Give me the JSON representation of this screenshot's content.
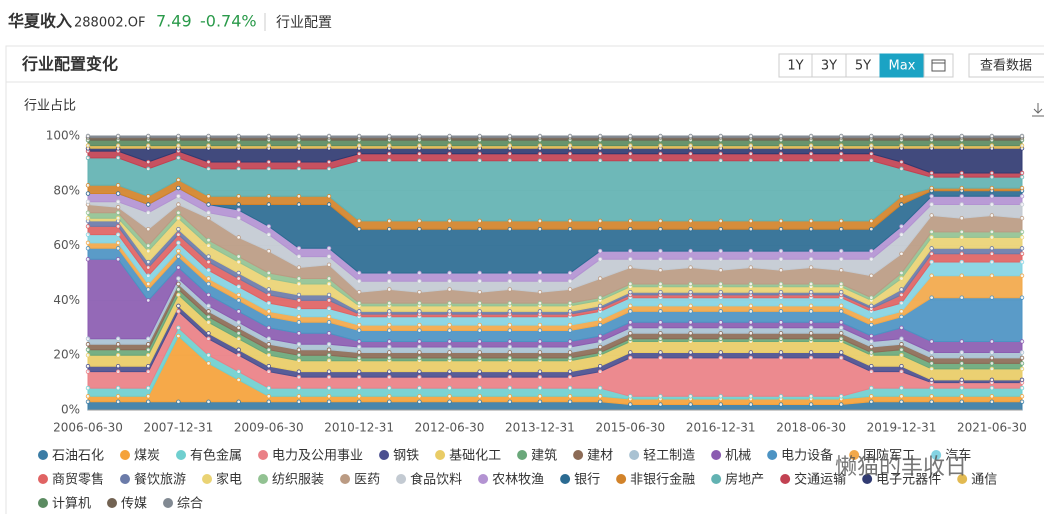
{
  "header": {
    "fund_name": "华夏收入",
    "code": "288002.OF",
    "nav": "7.49",
    "change": "-0.74%",
    "tab": "行业配置"
  },
  "card": {
    "title": "行业配置变化",
    "buttons": [
      "1Y",
      "3Y",
      "5Y",
      "Max"
    ],
    "active_button": 3,
    "view_data": "查看数据"
  },
  "watermark": "懒猫的丰收日",
  "chart_data": {
    "type": "area",
    "stacked": true,
    "ylabel": "行业占比",
    "legend": "bottom",
    "grid": true,
    "categories": [
      "2006-06-30",
      null,
      null,
      "2007-12-31",
      null,
      null,
      "2009-06-30",
      null,
      null,
      "2010-12-31",
      null,
      null,
      "2012-06-30",
      null,
      null,
      "2013-12-31",
      null,
      null,
      "2015-06-30",
      null,
      null,
      "2016-12-31",
      null,
      null,
      "2018-06-30",
      null,
      null,
      "2019-12-31",
      null,
      null,
      "2021-06-30",
      null
    ],
    "ylim": [
      0,
      100
    ],
    "yticks": [
      {
        "value": 0,
        "label": "0%"
      },
      {
        "value": 20,
        "label": "20%"
      },
      {
        "value": 40,
        "label": "40%"
      },
      {
        "value": 60,
        "label": "60%"
      },
      {
        "value": 80,
        "label": "80%"
      },
      {
        "value": 100,
        "label": "100%"
      }
    ],
    "series": [
      {
        "name": "石油石化",
        "color": "#3a7ca5",
        "values": [
          3,
          3,
          3,
          3,
          3,
          3,
          3,
          3,
          3,
          3,
          3,
          3,
          3,
          3,
          3,
          3,
          3,
          3,
          2,
          2,
          2,
          2,
          2,
          2,
          2,
          2,
          3,
          3,
          3,
          3,
          3,
          3
        ]
      },
      {
        "name": "煤炭",
        "color": "#f5a23a",
        "values": [
          2,
          2,
          2,
          24,
          14,
          8,
          2,
          2,
          2,
          2,
          2,
          2,
          2,
          2,
          2,
          2,
          2,
          2,
          2,
          2,
          2,
          2,
          2,
          2,
          2,
          2,
          2,
          2,
          2,
          2,
          2,
          2
        ]
      },
      {
        "name": "有色金属",
        "color": "#6fcfcf",
        "values": [
          3,
          3,
          3,
          3,
          3,
          3,
          3,
          3,
          3,
          3,
          3,
          3,
          3,
          3,
          3,
          3,
          3,
          3,
          1,
          1,
          1,
          1,
          1,
          1,
          1,
          1,
          3,
          3,
          3,
          3,
          3,
          3
        ]
      },
      {
        "name": "电力及公用事业",
        "color": "#ea8086",
        "values": [
          6,
          6,
          6,
          6,
          6,
          6,
          6,
          4,
          4,
          4,
          4,
          4,
          4,
          4,
          4,
          4,
          4,
          6,
          14,
          14,
          14,
          14,
          14,
          14,
          14,
          14,
          6,
          6,
          2,
          2,
          2,
          2
        ]
      },
      {
        "name": "钢铁",
        "color": "#4b4f8f",
        "values": [
          2,
          2,
          2,
          2,
          2,
          2,
          2,
          2,
          2,
          2,
          2,
          2,
          2,
          2,
          2,
          2,
          2,
          2,
          2,
          2,
          2,
          2,
          2,
          2,
          2,
          2,
          2,
          2,
          1,
          1,
          1,
          1
        ]
      },
      {
        "name": "基础化工",
        "color": "#e9cc66",
        "values": [
          4,
          4,
          4,
          4,
          4,
          4,
          4,
          4,
          4,
          4,
          4,
          4,
          4,
          4,
          4,
          4,
          4,
          4,
          4,
          4,
          4,
          4,
          4,
          4,
          4,
          4,
          4,
          4,
          4,
          4,
          4,
          4
        ]
      },
      {
        "name": "建筑",
        "color": "#6aa87a",
        "values": [
          2,
          2,
          2,
          2,
          2,
          2,
          2,
          2,
          2,
          1,
          1,
          1,
          1,
          1,
          1,
          1,
          1,
          1,
          1,
          1,
          1,
          1,
          1,
          1,
          1,
          1,
          1,
          2,
          2,
          2,
          2,
          2
        ]
      },
      {
        "name": "建材",
        "color": "#8c6b56",
        "values": [
          2,
          2,
          2,
          2,
          2,
          2,
          2,
          2,
          2,
          2,
          2,
          2,
          2,
          2,
          2,
          2,
          2,
          2,
          2,
          2,
          2,
          2,
          2,
          2,
          2,
          2,
          2,
          2,
          2,
          2,
          2,
          2
        ]
      },
      {
        "name": "轻工制造",
        "color": "#a9c2d2",
        "values": [
          2,
          2,
          2,
          2,
          2,
          2,
          2,
          2,
          2,
          2,
          2,
          2,
          2,
          2,
          2,
          2,
          2,
          2,
          2,
          2,
          2,
          2,
          2,
          2,
          2,
          2,
          2,
          2,
          2,
          2,
          2,
          2
        ]
      },
      {
        "name": "机械",
        "color": "#8b5cb1",
        "values": [
          29,
          29,
          14,
          4,
          4,
          4,
          4,
          4,
          4,
          2,
          2,
          2,
          2,
          2,
          2,
          2,
          2,
          2,
          2,
          2,
          2,
          2,
          2,
          2,
          2,
          2,
          2,
          4,
          4,
          4,
          4,
          4
        ]
      },
      {
        "name": "电力设备",
        "color": "#4c93c3",
        "values": [
          4,
          4,
          4,
          4,
          4,
          4,
          4,
          4,
          4,
          4,
          4,
          4,
          4,
          4,
          4,
          4,
          4,
          4,
          4,
          4,
          4,
          4,
          4,
          4,
          4,
          4,
          4,
          4,
          16,
          16,
          16,
          16
        ]
      },
      {
        "name": "国防军工",
        "color": "#f2a84a",
        "values": [
          2,
          2,
          2,
          2,
          2,
          2,
          2,
          2,
          2,
          2,
          2,
          2,
          2,
          2,
          2,
          2,
          2,
          2,
          2,
          2,
          2,
          2,
          2,
          2,
          2,
          2,
          2,
          2,
          8,
          8,
          8,
          8
        ]
      },
      {
        "name": "汽车",
        "color": "#84d3e2",
        "values": [
          3,
          3,
          3,
          3,
          3,
          3,
          3,
          3,
          3,
          3,
          3,
          3,
          3,
          3,
          3,
          3,
          3,
          3,
          3,
          3,
          3,
          3,
          3,
          3,
          3,
          3,
          3,
          3,
          5,
          5,
          5,
          5
        ]
      },
      {
        "name": "商贸零售",
        "color": "#e06363",
        "values": [
          3,
          3,
          3,
          3,
          3,
          3,
          3,
          3,
          3,
          1,
          1,
          1,
          1,
          1,
          1,
          1,
          1,
          1,
          1,
          1,
          1,
          1,
          1,
          1,
          1,
          1,
          1,
          3,
          3,
          3,
          3,
          3
        ]
      },
      {
        "name": "餐饮旅游",
        "color": "#6b7ba9",
        "values": [
          2,
          2,
          2,
          2,
          2,
          2,
          2,
          2,
          2,
          1,
          1,
          1,
          1,
          1,
          1,
          1,
          1,
          1,
          1,
          1,
          1,
          1,
          1,
          1,
          1,
          1,
          1,
          2,
          2,
          2,
          2,
          2
        ]
      },
      {
        "name": "家电",
        "color": "#ead374",
        "values": [
          1,
          1,
          4,
          4,
          4,
          4,
          4,
          4,
          4,
          2,
          2,
          2,
          2,
          2,
          2,
          2,
          2,
          2,
          2,
          2,
          2,
          2,
          2,
          2,
          2,
          2,
          2,
          4,
          4,
          4,
          4,
          4
        ]
      },
      {
        "name": "纺织服装",
        "color": "#92c292",
        "values": [
          2,
          2,
          2,
          2,
          2,
          2,
          2,
          2,
          2,
          1,
          1,
          1,
          1,
          1,
          1,
          1,
          1,
          1,
          1,
          1,
          1,
          1,
          1,
          1,
          1,
          1,
          1,
          2,
          2,
          2,
          2,
          2
        ]
      },
      {
        "name": "医药",
        "color": "#bb9b83",
        "values": [
          3,
          2,
          6,
          3,
          8,
          7,
          8,
          4,
          5,
          4,
          5,
          4,
          5,
          4,
          5,
          4,
          5,
          7,
          6,
          5,
          6,
          5,
          6,
          5,
          6,
          5,
          8,
          7,
          6,
          5,
          6,
          5
        ]
      },
      {
        "name": "食品饮料",
        "color": "#c3cad2",
        "values": [
          1,
          2,
          6,
          3,
          2,
          7,
          6,
          4,
          3,
          4,
          3,
          4,
          3,
          4,
          3,
          4,
          3,
          7,
          3,
          4,
          3,
          4,
          3,
          4,
          3,
          4,
          6,
          7,
          4,
          5,
          4,
          5
        ]
      },
      {
        "name": "农林牧渔",
        "color": "#b393d2",
        "values": [
          3,
          3,
          3,
          3,
          3,
          3,
          3,
          3,
          3,
          3,
          3,
          3,
          3,
          3,
          3,
          3,
          3,
          3,
          3,
          3,
          3,
          3,
          3,
          3,
          3,
          3,
          3,
          3,
          3,
          3,
          3,
          3
        ]
      },
      {
        "name": "银行",
        "color": "#2b6b92",
        "values": [
          0,
          0,
          0,
          0,
          0,
          2,
          8,
          16,
          16,
          16,
          16,
          16,
          16,
          16,
          16,
          16,
          16,
          8,
          8,
          8,
          8,
          8,
          8,
          8,
          8,
          8,
          8,
          8,
          2,
          2,
          2,
          2
        ]
      },
      {
        "name": "非银行金融",
        "color": "#d2832a",
        "values": [
          3,
          3,
          3,
          3,
          3,
          3,
          3,
          3,
          3,
          3,
          3,
          3,
          3,
          3,
          3,
          3,
          3,
          3,
          3,
          3,
          3,
          3,
          3,
          3,
          3,
          3,
          3,
          3,
          1,
          1,
          1,
          1
        ]
      },
      {
        "name": "房地产",
        "color": "#62b2b2",
        "values": [
          10,
          10,
          10,
          8,
          10,
          10,
          10,
          10,
          10,
          22,
          22,
          22,
          22,
          22,
          22,
          22,
          22,
          22,
          22,
          22,
          22,
          22,
          22,
          22,
          22,
          22,
          22,
          10,
          4,
          4,
          4,
          4
        ]
      },
      {
        "name": "交通运输",
        "color": "#c24252",
        "values": [
          2.5,
          2.5,
          2.5,
          2.5,
          2.5,
          2.5,
          2.5,
          2.5,
          2.5,
          2.5,
          2.5,
          2.5,
          2.5,
          2.5,
          2.5,
          2.5,
          2.5,
          2.5,
          2.5,
          2.5,
          2.5,
          2.5,
          2.5,
          2.5,
          2.5,
          2.5,
          2.5,
          2.5,
          1.5,
          1.5,
          1.5,
          1.5
        ]
      },
      {
        "name": "电子元器件",
        "color": "#313b72",
        "values": [
          1,
          1,
          5,
          1,
          5,
          5,
          5,
          5,
          5,
          2,
          2,
          2,
          2,
          2,
          2,
          2,
          2,
          2,
          2,
          2,
          2,
          2,
          2,
          2,
          2,
          2,
          2,
          5,
          9,
          9,
          9,
          9
        ]
      },
      {
        "name": "通信",
        "color": "#e2ba52",
        "values": [
          1,
          1,
          1,
          1,
          1,
          1,
          1,
          1,
          1,
          1,
          1,
          1,
          1,
          1,
          1,
          1,
          1,
          1,
          1,
          1,
          1,
          1,
          1,
          1,
          1,
          1,
          1,
          1,
          1,
          1,
          1,
          1
        ]
      },
      {
        "name": "计算机",
        "color": "#5b8b61",
        "values": [
          2,
          2,
          2,
          2,
          2,
          2,
          2,
          2,
          2,
          2,
          2,
          2,
          2,
          2,
          2,
          2,
          2,
          2,
          2,
          2,
          2,
          2,
          2,
          2,
          2,
          2,
          2,
          2,
          2,
          2,
          2,
          2
        ]
      },
      {
        "name": "传媒",
        "color": "#726252",
        "values": [
          1,
          1,
          1,
          1,
          1,
          1,
          1,
          1,
          1,
          1,
          1,
          1,
          1,
          1,
          1,
          1,
          1,
          1,
          1,
          1,
          1,
          1,
          1,
          1,
          1,
          1,
          1,
          1,
          1,
          1,
          1,
          1
        ]
      },
      {
        "name": "综合",
        "color": "#818992",
        "values": [
          0.5,
          0.5,
          0.5,
          0.5,
          0.5,
          0.5,
          0.5,
          0.5,
          0.5,
          0.5,
          0.5,
          0.5,
          0.5,
          0.5,
          0.5,
          0.5,
          0.5,
          0.5,
          0.5,
          0.5,
          0.5,
          0.5,
          0.5,
          0.5,
          0.5,
          0.5,
          0.5,
          0.5,
          0.5,
          0.5,
          0.5,
          0.5
        ]
      }
    ]
  }
}
